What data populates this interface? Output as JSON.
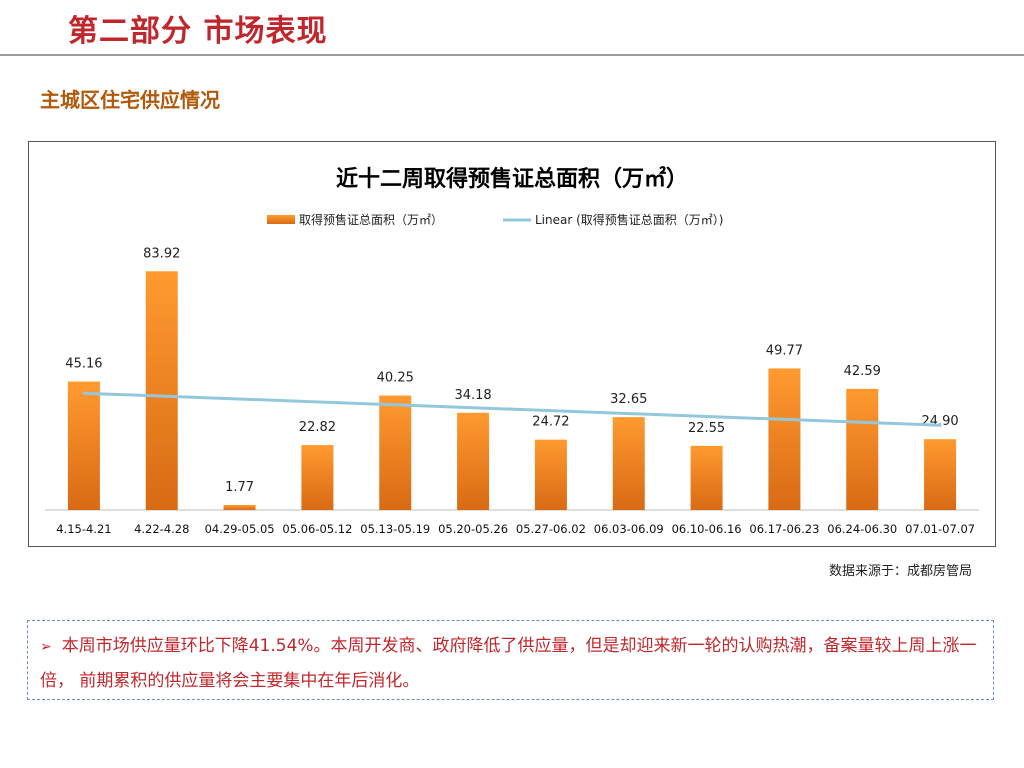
{
  "page": {
    "title": "第二部分 市场表现",
    "section": "主城区住宅供应情况",
    "source": "数据来源于：成都房管局",
    "bullet_symbol": "➢",
    "note": "本周市场供应量环比下降41.54%。本周开发商、政府降低了供应量，但是却迎来新一轮的认购热潮，备案量较上周上涨一倍， 前期累积的供应量将会主要集中在年后消化。"
  },
  "colors": {
    "title": "#c0272d",
    "section": "#b15a0c",
    "bar_top": "#ff9a30",
    "bar_bottom": "#d86a14",
    "trendline": "#93c8dc"
  },
  "chart_data": {
    "type": "bar",
    "title": "近十二周取得预售证总面积（万㎡）",
    "categories": [
      "4.15-4.21",
      "4.22-4.28",
      "04.29-05.05",
      "05.06-05.12",
      "05.13-05.19",
      "05.20-05.26",
      "05.27-06.02",
      "06.03-06.09",
      "06.10-06.16",
      "06.17-06.23",
      "06.24-06.30",
      "07.01-07.07"
    ],
    "series": [
      {
        "name": "取得预售证总面积（万㎡）",
        "values": [
          45.16,
          83.92,
          1.77,
          22.82,
          40.25,
          34.18,
          24.72,
          32.65,
          22.55,
          49.77,
          42.59,
          24.9
        ],
        "labels": [
          "45.16",
          "83.92",
          "1.77",
          "22.82",
          "40.25",
          "34.18",
          "24.72",
          "32.65",
          "22.55",
          "49.77",
          "42.59",
          "24.90"
        ]
      }
    ],
    "trendline": {
      "name": "Linear (取得预售证总面积（万㎡）)",
      "type": "linear"
    },
    "legend_position": "top",
    "grid": false,
    "ylim": [
      0,
      90
    ]
  }
}
